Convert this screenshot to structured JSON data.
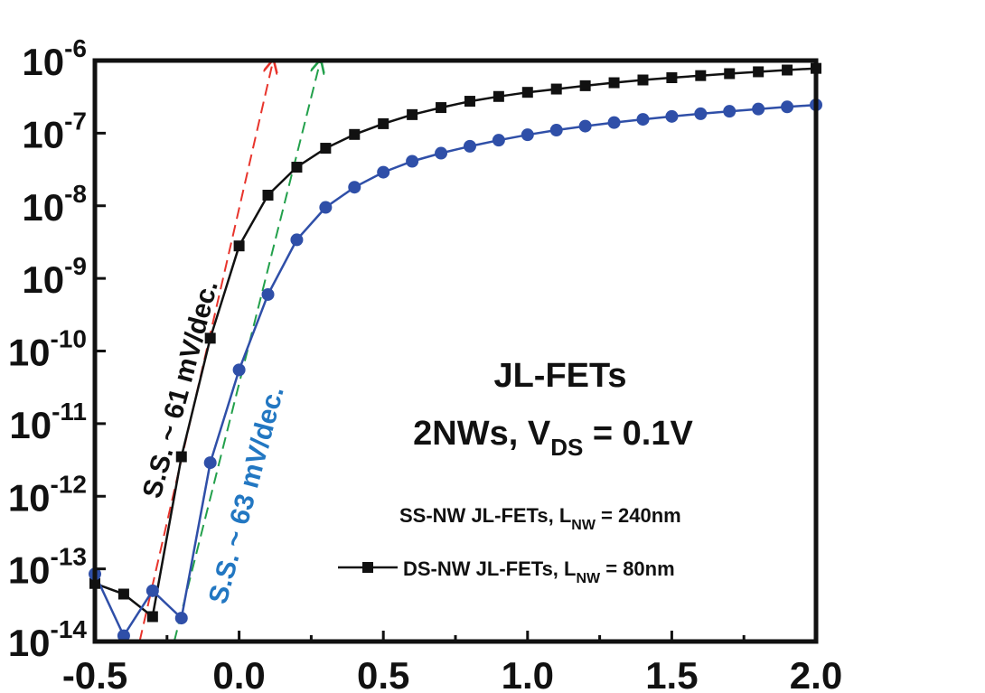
{
  "chart_data": {
    "type": "line",
    "yscale": "log",
    "xlim": [
      -0.5,
      2.0
    ],
    "ylim": [
      1e-14,
      1e-06
    ],
    "x_ticks": [
      "-0.5",
      "0.0",
      "0.5",
      "1.0",
      "1.5",
      "2.0"
    ],
    "y_ticks": [
      {
        "base": "10",
        "exp": "-6"
      },
      {
        "base": "10",
        "exp": "-7"
      },
      {
        "base": "10",
        "exp": "-8"
      },
      {
        "base": "10",
        "exp": "-9"
      },
      {
        "base": "10",
        "exp": "-10"
      },
      {
        "base": "10",
        "exp": "-11"
      },
      {
        "base": "10",
        "exp": "-12"
      },
      {
        "base": "10",
        "exp": "-13"
      },
      {
        "base": "10",
        "exp": "-14"
      }
    ],
    "annotations": {
      "title_line1": "JL-FETs",
      "title_line2_pre": "2NWs, V",
      "title_line2_sub": "DS",
      "title_line2_post": " = 0.1V",
      "ss_black": "S.S. ~ 61 mV/dec.",
      "ss_blue": "S.S. ~ 63 mV/dec."
    },
    "legend": {
      "placement": "bottom-right",
      "entries": [
        {
          "pre": "SS-NW JL-FETs, L",
          "sub": "NW",
          "post": " = 240nm"
        },
        {
          "pre": "DS-NW JL-FETs, L",
          "sub": "NW",
          "post": " = 80nm"
        }
      ]
    },
    "series": [
      {
        "marker": "square",
        "color": "#111111",
        "x": [
          -0.5,
          -0.4,
          -0.3,
          -0.2,
          -0.1,
          0.0,
          0.1,
          0.2,
          0.3,
          0.4,
          0.5,
          0.6,
          0.7,
          0.8,
          0.9,
          1.0,
          1.1,
          1.2,
          1.3,
          1.4,
          1.5,
          1.6,
          1.7,
          1.8,
          1.9,
          2.0
        ],
        "y": [
          6.3e-14,
          4.5e-14,
          2.2e-14,
          3.5e-12,
          1.5e-10,
          2.8e-09,
          1.4e-08,
          3.4e-08,
          6.2e-08,
          9.6e-08,
          1.35e-07,
          1.8e-07,
          2.25e-07,
          2.75e-07,
          3.2e-07,
          3.65e-07,
          4.05e-07,
          4.5e-07,
          4.95e-07,
          5.4e-07,
          5.8e-07,
          6.2e-07,
          6.6e-07,
          7e-07,
          7.4e-07,
          7.8e-07
        ]
      },
      {
        "marker": "circle",
        "color": "#2f4fa8",
        "x": [
          -0.5,
          -0.4,
          -0.3,
          -0.2,
          -0.1,
          0.0,
          0.1,
          0.2,
          0.3,
          0.4,
          0.5,
          0.6,
          0.7,
          0.8,
          0.9,
          1.0,
          1.1,
          1.2,
          1.3,
          1.4,
          1.5,
          1.6,
          1.7,
          1.8,
          1.9,
          2.0
        ],
        "y": [
          8.5e-14,
          1.2e-14,
          5e-14,
          2.1e-14,
          2.9e-12,
          5.5e-11,
          6e-10,
          3.4e-09,
          9.5e-09,
          1.8e-08,
          2.9e-08,
          4.1e-08,
          5.3e-08,
          6.6e-08,
          8e-08,
          9.5e-08,
          1.1e-07,
          1.25e-07,
          1.4e-07,
          1.55e-07,
          1.7e-07,
          1.85e-07,
          2e-07,
          2.15e-07,
          2.3e-07,
          2.45e-07
        ]
      }
    ],
    "fit_lines": [
      {
        "color": "#e8342c",
        "x": [
          -0.345,
          0.118
        ],
        "y": [
          1e-14,
          1e-06
        ]
      },
      {
        "color": "#22a04b",
        "x": [
          -0.225,
          0.282
        ],
        "y": [
          1e-14,
          1e-06
        ]
      }
    ],
    "colors": {
      "axis": "#111111",
      "black_series": "#111111",
      "blue_series": "#2f4fa8",
      "blue_text": "#2277c2"
    }
  }
}
